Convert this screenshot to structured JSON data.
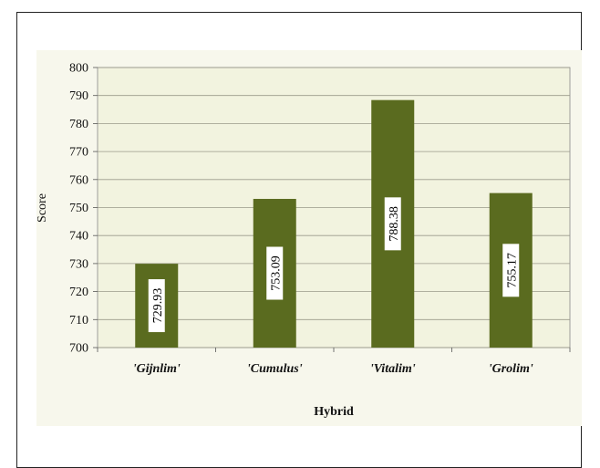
{
  "chart_data": {
    "type": "bar",
    "categories": [
      "'Gijnlim'",
      "'Cumulus'",
      "'Vitalim'",
      "'Grolim'"
    ],
    "values": [
      729.93,
      753.09,
      788.38,
      755.17
    ],
    "data_labels": [
      "729.93",
      "753.09",
      "788.38",
      "755.17"
    ],
    "xlabel": "Hybrid",
    "ylabel": "Score",
    "ylim": [
      700,
      800
    ],
    "yticks": [
      700,
      710,
      720,
      730,
      740,
      750,
      760,
      770,
      780,
      790,
      800
    ],
    "grid": true,
    "legend": "none",
    "colors": {
      "bar": "#5a6b1f",
      "plot_background": "#f2f3df",
      "panel_background": "#f7f7ec",
      "gridline": "#9a9a8a",
      "label_box": "#ffffff"
    }
  }
}
